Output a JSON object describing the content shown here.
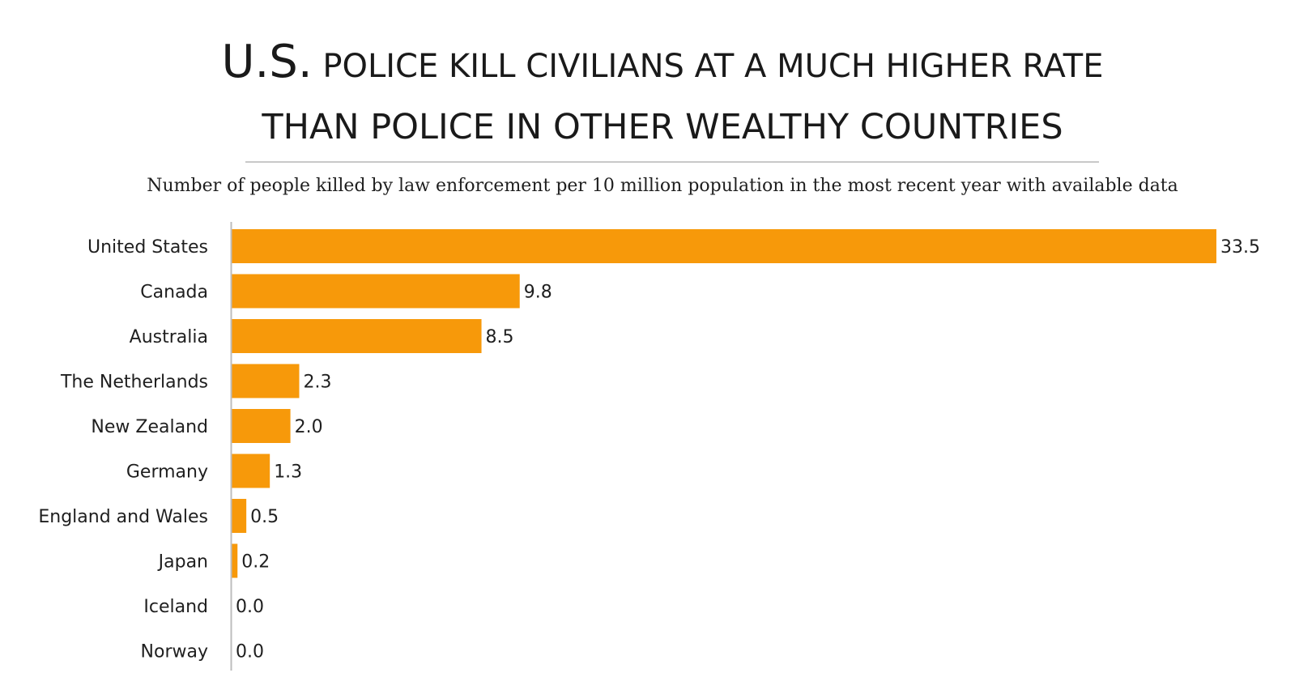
{
  "chart_data": {
    "type": "bar",
    "orientation": "horizontal",
    "title_prefix": "U.S.",
    "title_line1_rest": " POLICE KILL CIVILIANS AT A MUCH HIGHER RATE",
    "title_line2": "THAN POLICE IN OTHER WEALTHY COUNTRIES",
    "subtitle": "Number of people killed by law enforcement per 10 million population in the most recent year with available data",
    "categories": [
      "United States",
      "Canada",
      "Australia",
      "The Netherlands",
      "New Zealand",
      "Germany",
      "England and Wales",
      "Japan",
      "Iceland",
      "Norway"
    ],
    "values": [
      33.5,
      9.8,
      8.5,
      2.3,
      2.0,
      1.3,
      0.5,
      0.2,
      0.0,
      0.0
    ],
    "value_labels": [
      "33.5",
      "9.8",
      "8.5",
      "2.3",
      "2.0",
      "1.3",
      "0.5",
      "0.2",
      "0.0",
      "0.0"
    ],
    "xlim": [
      0,
      33.5
    ],
    "xlabel": "",
    "ylabel": "",
    "grid": false,
    "bar_color": "#f7990a",
    "axis_color": "#bdbdbd",
    "rule_color": "#c8c8c8"
  }
}
